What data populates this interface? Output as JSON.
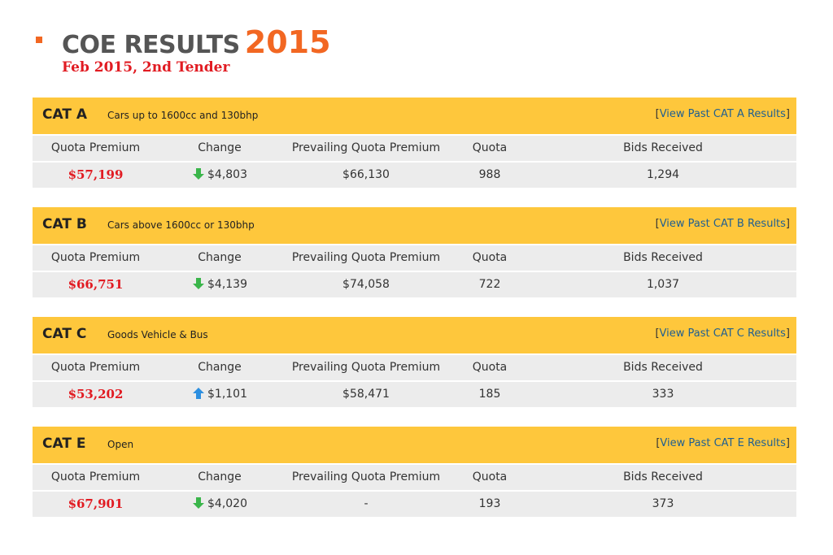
{
  "header": {
    "title": "COE RESULTS",
    "year": "2015",
    "subtitle": "Feb 2015, 2nd Tender"
  },
  "columns": {
    "quota_premium": "Quota Premium",
    "change": "Change",
    "prevailing": "Prevailing Quota Premium",
    "quota": "Quota",
    "bids": "Bids Received"
  },
  "link": {
    "open": "[",
    "close": "]"
  },
  "colors": {
    "accent": "#f26722",
    "header_bar": "#fec73c",
    "premium_red": "#e11b22",
    "down_arrow": "#3ab54a",
    "up_arrow": "#2d8fe0",
    "link": "#1f5f91"
  },
  "categories": [
    {
      "name": "CAT A",
      "description": "Cars up to 1600cc and 130bhp",
      "link_text": "View Past CAT A Results",
      "quota_premium": "$57,199",
      "change_direction": "down",
      "change_icon": "arrow-down-icon",
      "change": "$4,803",
      "prevailing": "$66,130",
      "quota": "988",
      "bids": "1,294"
    },
    {
      "name": "CAT B",
      "description": "Cars above 1600cc or 130bhp",
      "link_text": "View Past CAT B Results",
      "quota_premium": "$66,751",
      "change_direction": "down",
      "change_icon": "arrow-down-icon",
      "change": "$4,139",
      "prevailing": "$74,058",
      "quota": "722",
      "bids": "1,037"
    },
    {
      "name": "CAT C",
      "description": "Goods Vehicle & Bus",
      "link_text": "View Past CAT C Results",
      "quota_premium": "$53,202",
      "change_direction": "up",
      "change_icon": "arrow-up-icon",
      "change": "$1,101",
      "prevailing": "$58,471",
      "quota": "185",
      "bids": "333"
    },
    {
      "name": "CAT E",
      "description": "Open",
      "link_text": "View Past CAT E Results",
      "quota_premium": "$67,901",
      "change_direction": "down",
      "change_icon": "arrow-down-icon",
      "change": "$4,020",
      "prevailing": "-",
      "quota": "193",
      "bids": "373"
    }
  ]
}
